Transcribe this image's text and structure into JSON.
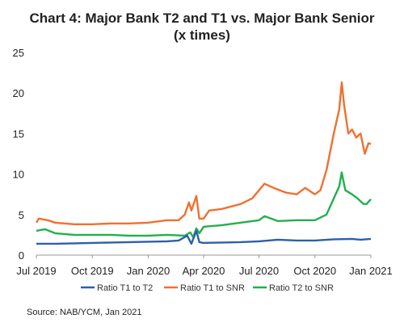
{
  "chart_data": {
    "type": "line",
    "title": "Chart 4: Major Bank T2 and T1 vs. Major Bank Senior",
    "subtitle": "(x times)",
    "xlabel": "",
    "ylabel": "",
    "ylim": [
      0,
      25
    ],
    "xlim": [
      "2019-07-01",
      "2021-01-01"
    ],
    "y_ticks": [
      "0",
      "5",
      "10",
      "15",
      "20",
      "25"
    ],
    "x_ticks": [
      {
        "date": "2019-07-01",
        "label": "Jul 2019"
      },
      {
        "date": "2019-10-01",
        "label": "Oct 2019"
      },
      {
        "date": "2020-01-01",
        "label": "Jan 2020"
      },
      {
        "date": "2020-04-01",
        "label": "Apr 2020"
      },
      {
        "date": "2020-07-01",
        "label": "Jul 2020"
      },
      {
        "date": "2020-10-01",
        "label": "Oct 2020"
      },
      {
        "date": "2021-01-01",
        "label": "Jan 2021"
      }
    ],
    "grid": false,
    "legend_position": "bottom",
    "series": [
      {
        "name": "Ratio T1 to T2",
        "color": "#2e5fa8",
        "points": [
          [
            "2019-07-01",
            1.4
          ],
          [
            "2019-08-01",
            1.4
          ],
          [
            "2019-09-01",
            1.45
          ],
          [
            "2019-10-01",
            1.5
          ],
          [
            "2019-11-01",
            1.55
          ],
          [
            "2019-12-01",
            1.6
          ],
          [
            "2020-01-01",
            1.65
          ],
          [
            "2020-02-01",
            1.7
          ],
          [
            "2020-02-20",
            1.8
          ],
          [
            "2020-03-05",
            2.4
          ],
          [
            "2020-03-12",
            1.4
          ],
          [
            "2020-03-20",
            3.0
          ],
          [
            "2020-03-25",
            1.6
          ],
          [
            "2020-04-01",
            1.5
          ],
          [
            "2020-05-01",
            1.55
          ],
          [
            "2020-06-01",
            1.6
          ],
          [
            "2020-07-01",
            1.7
          ],
          [
            "2020-08-01",
            1.9
          ],
          [
            "2020-09-01",
            1.8
          ],
          [
            "2020-10-01",
            1.8
          ],
          [
            "2020-11-01",
            1.95
          ],
          [
            "2020-12-01",
            2.0
          ],
          [
            "2020-12-15",
            1.9
          ],
          [
            "2021-01-01",
            2.0
          ]
        ]
      },
      {
        "name": "Ratio T1 to SNR",
        "color": "#f07030",
        "points": [
          [
            "2019-07-01",
            4.0
          ],
          [
            "2019-07-05",
            4.5
          ],
          [
            "2019-07-20",
            4.3
          ],
          [
            "2019-08-01",
            4.0
          ],
          [
            "2019-09-01",
            3.8
          ],
          [
            "2019-10-01",
            3.8
          ],
          [
            "2019-11-01",
            3.9
          ],
          [
            "2019-12-01",
            3.9
          ],
          [
            "2020-01-01",
            4.0
          ],
          [
            "2020-02-01",
            4.3
          ],
          [
            "2020-02-20",
            4.3
          ],
          [
            "2020-03-01",
            5.0
          ],
          [
            "2020-03-08",
            6.5
          ],
          [
            "2020-03-12",
            5.5
          ],
          [
            "2020-03-20",
            7.3
          ],
          [
            "2020-03-25",
            4.5
          ],
          [
            "2020-04-01",
            4.5
          ],
          [
            "2020-04-10",
            5.5
          ],
          [
            "2020-05-01",
            5.7
          ],
          [
            "2020-06-01",
            6.3
          ],
          [
            "2020-06-20",
            7.0
          ],
          [
            "2020-07-01",
            8.0
          ],
          [
            "2020-07-10",
            8.8
          ],
          [
            "2020-07-25",
            8.3
          ],
          [
            "2020-08-15",
            7.7
          ],
          [
            "2020-09-01",
            7.5
          ],
          [
            "2020-09-15",
            8.3
          ],
          [
            "2020-10-01",
            7.5
          ],
          [
            "2020-10-10",
            8.0
          ],
          [
            "2020-10-20",
            10.5
          ],
          [
            "2020-11-01",
            15.0
          ],
          [
            "2020-11-10",
            18.0
          ],
          [
            "2020-11-14",
            21.3
          ],
          [
            "2020-11-18",
            18.5
          ],
          [
            "2020-11-25",
            15.0
          ],
          [
            "2020-12-01",
            15.5
          ],
          [
            "2020-12-08",
            14.5
          ],
          [
            "2020-12-15",
            15.0
          ],
          [
            "2020-12-22",
            12.5
          ],
          [
            "2020-12-28",
            13.8
          ],
          [
            "2021-01-01",
            13.7
          ]
        ]
      },
      {
        "name": "Ratio T2 to SNR",
        "color": "#22b04c",
        "points": [
          [
            "2019-07-01",
            3.0
          ],
          [
            "2019-07-15",
            3.2
          ],
          [
            "2019-08-01",
            2.7
          ],
          [
            "2019-09-01",
            2.5
          ],
          [
            "2019-10-01",
            2.5
          ],
          [
            "2019-11-01",
            2.5
          ],
          [
            "2019-12-01",
            2.4
          ],
          [
            "2020-01-01",
            2.4
          ],
          [
            "2020-02-01",
            2.5
          ],
          [
            "2020-03-01",
            2.4
          ],
          [
            "2020-03-10",
            2.8
          ],
          [
            "2020-03-15",
            2.2
          ],
          [
            "2020-03-20",
            3.3
          ],
          [
            "2020-03-25",
            2.7
          ],
          [
            "2020-04-01",
            3.5
          ],
          [
            "2020-05-01",
            3.7
          ],
          [
            "2020-06-01",
            4.0
          ],
          [
            "2020-07-01",
            4.3
          ],
          [
            "2020-07-10",
            4.8
          ],
          [
            "2020-08-01",
            4.2
          ],
          [
            "2020-09-01",
            4.3
          ],
          [
            "2020-10-01",
            4.3
          ],
          [
            "2020-10-20",
            5.0
          ],
          [
            "2020-11-01",
            7.0
          ],
          [
            "2020-11-10",
            8.5
          ],
          [
            "2020-11-14",
            10.2
          ],
          [
            "2020-11-20",
            8.0
          ],
          [
            "2020-12-01",
            7.5
          ],
          [
            "2020-12-10",
            7.0
          ],
          [
            "2020-12-20",
            6.3
          ],
          [
            "2020-12-25",
            6.3
          ],
          [
            "2021-01-01",
            6.9
          ]
        ]
      }
    ]
  },
  "source": "Source: NAB/YCM, Jan 2021"
}
